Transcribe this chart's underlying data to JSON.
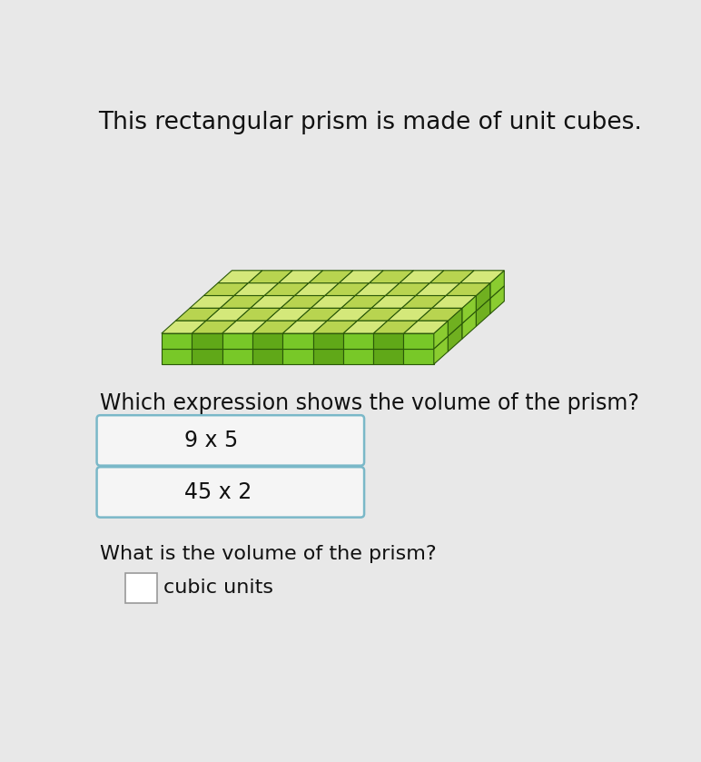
{
  "title": "This rectangular prism is made of unit cubes.",
  "title_fontsize": 19,
  "question1": "Which expression shows the volume of the prism?",
  "question1_fontsize": 17,
  "option1": "9 x 5",
  "option2": "45 x 2",
  "option_fontsize": 17,
  "question2": "What is the volume of the prism?",
  "question2_fontsize": 16,
  "answer_label": "cubic units",
  "answer_fontsize": 16,
  "bg_color": "#e8e8e8",
  "box_fill": "#f0f0f0",
  "box_border": "#7ab8c8",
  "text_color": "#111111",
  "prism_cols": 9,
  "prism_rows": 5,
  "prism_layers": 2,
  "top_light": "#d4e87a",
  "top_dark": "#b8d450",
  "front_light": "#78c828",
  "front_dark": "#60a818",
  "right_light": "#8acc30",
  "right_dark": "#70b020",
  "grid_color": "#2a5808"
}
